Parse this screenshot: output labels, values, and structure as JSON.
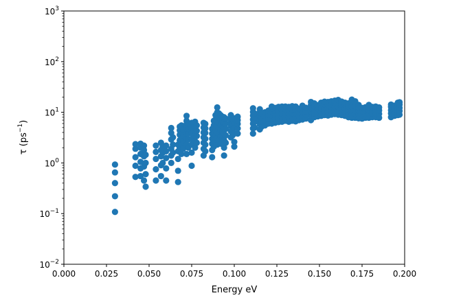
{
  "chart_data": {
    "type": "scatter",
    "title": "",
    "xlabel": "Energy eV",
    "ylabel_main": "τ (ps",
    "ylabel_sup": "−1",
    "ylabel_close": ")",
    "xlim": [
      0.0,
      0.2
    ],
    "ylim": [
      0.01,
      1000
    ],
    "yscale": "log",
    "grid": false,
    "marker_color": "#1f77b4",
    "x_ticks": [
      {
        "value": 0.0,
        "label": "0.000"
      },
      {
        "value": 0.025,
        "label": "0.025"
      },
      {
        "value": 0.05,
        "label": "0.050"
      },
      {
        "value": 0.075,
        "label": "0.075"
      },
      {
        "value": 0.1,
        "label": "0.100"
      },
      {
        "value": 0.125,
        "label": "0.125"
      },
      {
        "value": 0.15,
        "label": "0.150"
      },
      {
        "value": 0.175,
        "label": "0.175"
      },
      {
        "value": 0.2,
        "label": "0.200"
      }
    ],
    "y_ticks": [
      {
        "value": 0.01,
        "base": "10",
        "exp": "−2"
      },
      {
        "value": 0.1,
        "base": "10",
        "exp": "−1"
      },
      {
        "value": 1,
        "base": "10",
        "exp": "0"
      },
      {
        "value": 10,
        "base": "10",
        "exp": "1"
      },
      {
        "value": 100,
        "base": "10",
        "exp": "2"
      },
      {
        "value": 1000,
        "base": "10",
        "exp": "3"
      }
    ],
    "points": [
      [
        0.03,
        0.108
      ],
      [
        0.03,
        0.22
      ],
      [
        0.03,
        0.4
      ],
      [
        0.03,
        0.65
      ],
      [
        0.03,
        0.93
      ],
      [
        0.042,
        0.53
      ],
      [
        0.042,
        0.88
      ],
      [
        0.042,
        1.3
      ],
      [
        0.042,
        1.9
      ],
      [
        0.042,
        2.35
      ],
      [
        0.045,
        0.55
      ],
      [
        0.045,
        0.78
      ],
      [
        0.045,
        1.05
      ],
      [
        0.045,
        1.5
      ],
      [
        0.045,
        2.0
      ],
      [
        0.045,
        2.4
      ],
      [
        0.047,
        0.45
      ],
      [
        0.047,
        0.85
      ],
      [
        0.047,
        1.35
      ],
      [
        0.047,
        1.8
      ],
      [
        0.047,
        2.2
      ],
      [
        0.048,
        0.34
      ],
      [
        0.048,
        0.6
      ],
      [
        0.048,
        1.0
      ],
      [
        0.048,
        1.45
      ],
      [
        0.054,
        0.45
      ],
      [
        0.054,
        0.75
      ],
      [
        0.054,
        1.2
      ],
      [
        0.054,
        1.65
      ],
      [
        0.054,
        2.2
      ],
      [
        0.057,
        0.55
      ],
      [
        0.057,
        0.9
      ],
      [
        0.057,
        1.35
      ],
      [
        0.057,
        1.8
      ],
      [
        0.057,
        2.5
      ],
      [
        0.058,
        1.0
      ],
      [
        0.058,
        1.6
      ],
      [
        0.058,
        2.1
      ],
      [
        0.06,
        0.45
      ],
      [
        0.06,
        0.78
      ],
      [
        0.06,
        1.25
      ],
      [
        0.06,
        1.7
      ],
      [
        0.06,
        2.2
      ],
      [
        0.063,
        1.0
      ],
      [
        0.063,
        1.4
      ],
      [
        0.063,
        1.9
      ],
      [
        0.063,
        2.9
      ],
      [
        0.063,
        3.9
      ],
      [
        0.063,
        4.9
      ],
      [
        0.064,
        1.6
      ],
      [
        0.064,
        2.3
      ],
      [
        0.064,
        3.2
      ],
      [
        0.067,
        0.42
      ],
      [
        0.067,
        0.7
      ],
      [
        0.067,
        1.2
      ],
      [
        0.067,
        1.7
      ],
      [
        0.067,
        2.3
      ],
      [
        0.068,
        2.0
      ],
      [
        0.068,
        2.8
      ],
      [
        0.068,
        3.6
      ],
      [
        0.068,
        4.4
      ],
      [
        0.068,
        5.2
      ],
      [
        0.069,
        1.5
      ],
      [
        0.069,
        2.4
      ],
      [
        0.069,
        3.3
      ],
      [
        0.069,
        4.2
      ],
      [
        0.069,
        5.5
      ],
      [
        0.07,
        1.9
      ],
      [
        0.07,
        2.6
      ],
      [
        0.07,
        3.5
      ],
      [
        0.07,
        4.5
      ],
      [
        0.072,
        1.5
      ],
      [
        0.072,
        2.3
      ],
      [
        0.072,
        3.0
      ],
      [
        0.072,
        3.8
      ],
      [
        0.072,
        4.8
      ],
      [
        0.072,
        5.8
      ],
      [
        0.072,
        6.8
      ],
      [
        0.072,
        8.5
      ],
      [
        0.073,
        2.0
      ],
      [
        0.073,
        2.9
      ],
      [
        0.073,
        3.8
      ],
      [
        0.073,
        4.8
      ],
      [
        0.073,
        6.0
      ],
      [
        0.075,
        0.88
      ],
      [
        0.075,
        1.6
      ],
      [
        0.075,
        2.3
      ],
      [
        0.075,
        3.0
      ],
      [
        0.075,
        3.9
      ],
      [
        0.075,
        4.9
      ],
      [
        0.075,
        6.2
      ],
      [
        0.077,
        2.0
      ],
      [
        0.077,
        2.7
      ],
      [
        0.077,
        3.5
      ],
      [
        0.077,
        4.4
      ],
      [
        0.077,
        5.4
      ],
      [
        0.077,
        6.5
      ],
      [
        0.078,
        2.5
      ],
      [
        0.078,
        3.4
      ],
      [
        0.078,
        4.3
      ],
      [
        0.078,
        5.5
      ],
      [
        0.082,
        1.4
      ],
      [
        0.082,
        1.9
      ],
      [
        0.082,
        2.5
      ],
      [
        0.082,
        3.2
      ],
      [
        0.082,
        4.0
      ],
      [
        0.082,
        5.0
      ],
      [
        0.082,
        6.2
      ],
      [
        0.083,
        1.7
      ],
      [
        0.083,
        2.3
      ],
      [
        0.083,
        3.0
      ],
      [
        0.083,
        3.9
      ],
      [
        0.083,
        4.8
      ],
      [
        0.083,
        5.9
      ],
      [
        0.087,
        1.3
      ],
      [
        0.087,
        1.8
      ],
      [
        0.087,
        2.4
      ],
      [
        0.087,
        3.0
      ],
      [
        0.087,
        3.8
      ],
      [
        0.087,
        4.7
      ],
      [
        0.088,
        2.1
      ],
      [
        0.088,
        2.8
      ],
      [
        0.088,
        3.6
      ],
      [
        0.088,
        4.5
      ],
      [
        0.088,
        5.5
      ],
      [
        0.088,
        6.8
      ],
      [
        0.089,
        2.7
      ],
      [
        0.089,
        3.5
      ],
      [
        0.089,
        4.5
      ],
      [
        0.089,
        5.8
      ],
      [
        0.089,
        7.2
      ],
      [
        0.089,
        8.8
      ],
      [
        0.09,
        2.3
      ],
      [
        0.09,
        3.1
      ],
      [
        0.09,
        4.1
      ],
      [
        0.09,
        5.3
      ],
      [
        0.09,
        6.5
      ],
      [
        0.09,
        8.0
      ],
      [
        0.09,
        10.0
      ],
      [
        0.09,
        12.5
      ],
      [
        0.091,
        2.8
      ],
      [
        0.091,
        3.8
      ],
      [
        0.091,
        5.0
      ],
      [
        0.091,
        6.3
      ],
      [
        0.091,
        7.8
      ],
      [
        0.091,
        9.5
      ],
      [
        0.092,
        2.4
      ],
      [
        0.092,
        3.3
      ],
      [
        0.092,
        4.4
      ],
      [
        0.092,
        5.7
      ],
      [
        0.092,
        7.2
      ],
      [
        0.092,
        8.8
      ],
      [
        0.093,
        3.0
      ],
      [
        0.093,
        4.0
      ],
      [
        0.093,
        5.2
      ],
      [
        0.093,
        6.6
      ],
      [
        0.093,
        8.2
      ],
      [
        0.094,
        1.4
      ],
      [
        0.094,
        2.0
      ],
      [
        0.094,
        2.8
      ],
      [
        0.094,
        3.8
      ],
      [
        0.094,
        5.0
      ],
      [
        0.094,
        6.4
      ],
      [
        0.094,
        8.0
      ],
      [
        0.095,
        2.5
      ],
      [
        0.095,
        3.5
      ],
      [
        0.095,
        4.7
      ],
      [
        0.095,
        6.0
      ],
      [
        0.095,
        7.5
      ],
      [
        0.098,
        3.2
      ],
      [
        0.098,
        4.2
      ],
      [
        0.098,
        5.3
      ],
      [
        0.098,
        6.5
      ],
      [
        0.098,
        7.8
      ],
      [
        0.098,
        8.8
      ],
      [
        0.099,
        3.5
      ],
      [
        0.099,
        4.6
      ],
      [
        0.099,
        5.9
      ],
      [
        0.099,
        7.2
      ],
      [
        0.1,
        2.1
      ],
      [
        0.1,
        2.6
      ],
      [
        0.1,
        3.8
      ],
      [
        0.1,
        5.0
      ],
      [
        0.1,
        6.3
      ],
      [
        0.1,
        7.6
      ],
      [
        0.102,
        3.8
      ],
      [
        0.102,
        4.8
      ],
      [
        0.102,
        5.9
      ],
      [
        0.102,
        7.0
      ],
      [
        0.102,
        8.2
      ],
      [
        0.111,
        3.8
      ],
      [
        0.111,
        4.8
      ],
      [
        0.111,
        6.0
      ],
      [
        0.111,
        7.2
      ],
      [
        0.111,
        8.6
      ],
      [
        0.111,
        10.2
      ],
      [
        0.111,
        12.0
      ],
      [
        0.112,
        5.0
      ],
      [
        0.112,
        6.5
      ],
      [
        0.112,
        8.0
      ],
      [
        0.112,
        9.5
      ],
      [
        0.115,
        4.6
      ],
      [
        0.115,
        5.8
      ],
      [
        0.115,
        7.0
      ],
      [
        0.115,
        8.4
      ],
      [
        0.115,
        10.0
      ],
      [
        0.115,
        11.5
      ],
      [
        0.116,
        5.2
      ],
      [
        0.116,
        6.6
      ],
      [
        0.116,
        8.0
      ],
      [
        0.116,
        9.6
      ],
      [
        0.118,
        5.5
      ],
      [
        0.118,
        7.0
      ],
      [
        0.118,
        8.5
      ],
      [
        0.118,
        10.0
      ],
      [
        0.12,
        6.0
      ],
      [
        0.12,
        7.5
      ],
      [
        0.12,
        9.0
      ],
      [
        0.12,
        10.8
      ],
      [
        0.122,
        6.0
      ],
      [
        0.122,
        7.3
      ],
      [
        0.122,
        8.7
      ],
      [
        0.122,
        10.3
      ],
      [
        0.122,
        12.0
      ],
      [
        0.122,
        13.0
      ],
      [
        0.124,
        6.2
      ],
      [
        0.124,
        7.6
      ],
      [
        0.124,
        9.1
      ],
      [
        0.124,
        10.8
      ],
      [
        0.124,
        12.2
      ],
      [
        0.126,
        6.4
      ],
      [
        0.126,
        7.8
      ],
      [
        0.126,
        9.3
      ],
      [
        0.126,
        11.0
      ],
      [
        0.126,
        12.8
      ],
      [
        0.128,
        6.5
      ],
      [
        0.128,
        8.0
      ],
      [
        0.128,
        9.5
      ],
      [
        0.128,
        11.2
      ],
      [
        0.128,
        13.0
      ],
      [
        0.13,
        6.8
      ],
      [
        0.13,
        8.2
      ],
      [
        0.13,
        9.8
      ],
      [
        0.13,
        11.5
      ],
      [
        0.13,
        13.0
      ],
      [
        0.132,
        6.5
      ],
      [
        0.132,
        7.9
      ],
      [
        0.132,
        9.4
      ],
      [
        0.132,
        11.0
      ],
      [
        0.132,
        12.8
      ],
      [
        0.134,
        6.8
      ],
      [
        0.134,
        8.2
      ],
      [
        0.134,
        9.7
      ],
      [
        0.134,
        11.4
      ],
      [
        0.134,
        13.2
      ],
      [
        0.136,
        6.6
      ],
      [
        0.136,
        8.0
      ],
      [
        0.136,
        9.6
      ],
      [
        0.136,
        11.3
      ],
      [
        0.136,
        13.0
      ],
      [
        0.138,
        7.0
      ],
      [
        0.138,
        8.4
      ],
      [
        0.138,
        10.0
      ],
      [
        0.138,
        11.8
      ],
      [
        0.14,
        7.2
      ],
      [
        0.14,
        8.6
      ],
      [
        0.14,
        10.2
      ],
      [
        0.14,
        12.0
      ],
      [
        0.14,
        13.5
      ],
      [
        0.142,
        7.5
      ],
      [
        0.142,
        9.0
      ],
      [
        0.142,
        10.6
      ],
      [
        0.142,
        12.3
      ],
      [
        0.145,
        7.0
      ],
      [
        0.145,
        8.6
      ],
      [
        0.145,
        10.3
      ],
      [
        0.145,
        12.0
      ],
      [
        0.145,
        14.0
      ],
      [
        0.145,
        16.0
      ],
      [
        0.147,
        8.0
      ],
      [
        0.147,
        9.6
      ],
      [
        0.147,
        11.3
      ],
      [
        0.147,
        13.2
      ],
      [
        0.147,
        15.0
      ],
      [
        0.149,
        8.3
      ],
      [
        0.149,
        10.0
      ],
      [
        0.149,
        11.8
      ],
      [
        0.149,
        13.8
      ],
      [
        0.151,
        8.5
      ],
      [
        0.151,
        10.2
      ],
      [
        0.151,
        12.0
      ],
      [
        0.151,
        14.0
      ],
      [
        0.151,
        15.5
      ],
      [
        0.153,
        8.8
      ],
      [
        0.153,
        10.5
      ],
      [
        0.153,
        12.3
      ],
      [
        0.153,
        14.3
      ],
      [
        0.153,
        16.2
      ],
      [
        0.155,
        8.6
      ],
      [
        0.155,
        10.3
      ],
      [
        0.155,
        12.1
      ],
      [
        0.155,
        14.1
      ],
      [
        0.155,
        16.0
      ],
      [
        0.157,
        9.0
      ],
      [
        0.157,
        10.8
      ],
      [
        0.157,
        12.6
      ],
      [
        0.157,
        14.6
      ],
      [
        0.157,
        16.5
      ],
      [
        0.159,
        9.2
      ],
      [
        0.159,
        11.0
      ],
      [
        0.159,
        12.9
      ],
      [
        0.159,
        15.0
      ],
      [
        0.159,
        17.0
      ],
      [
        0.161,
        9.0
      ],
      [
        0.161,
        10.8
      ],
      [
        0.161,
        12.7
      ],
      [
        0.161,
        14.8
      ],
      [
        0.161,
        17.5
      ],
      [
        0.163,
        8.8
      ],
      [
        0.163,
        10.6
      ],
      [
        0.163,
        12.4
      ],
      [
        0.163,
        14.4
      ],
      [
        0.163,
        16.3
      ],
      [
        0.165,
        8.5
      ],
      [
        0.165,
        10.2
      ],
      [
        0.165,
        12.0
      ],
      [
        0.165,
        14.0
      ],
      [
        0.165,
        15.5
      ],
      [
        0.167,
        8.0
      ],
      [
        0.167,
        9.6
      ],
      [
        0.167,
        11.3
      ],
      [
        0.167,
        13.2
      ],
      [
        0.167,
        15.0
      ],
      [
        0.169,
        7.8
      ],
      [
        0.169,
        9.4
      ],
      [
        0.169,
        11.0
      ],
      [
        0.169,
        13.0
      ],
      [
        0.169,
        15.5
      ],
      [
        0.169,
        17.8
      ],
      [
        0.171,
        7.8
      ],
      [
        0.171,
        9.3
      ],
      [
        0.171,
        11.0
      ],
      [
        0.171,
        13.0
      ],
      [
        0.171,
        16.5
      ],
      [
        0.173,
        7.6
      ],
      [
        0.173,
        9.1
      ],
      [
        0.173,
        10.7
      ],
      [
        0.173,
        12.5
      ],
      [
        0.173,
        14.0
      ],
      [
        0.175,
        7.5
      ],
      [
        0.175,
        9.0
      ],
      [
        0.175,
        10.5
      ],
      [
        0.175,
        12.2
      ],
      [
        0.177,
        7.8
      ],
      [
        0.177,
        9.3
      ],
      [
        0.177,
        10.9
      ],
      [
        0.177,
        12.6
      ],
      [
        0.179,
        7.8
      ],
      [
        0.179,
        9.3
      ],
      [
        0.179,
        10.9
      ],
      [
        0.179,
        12.6
      ],
      [
        0.179,
        14.0
      ],
      [
        0.181,
        8.0
      ],
      [
        0.181,
        9.5
      ],
      [
        0.181,
        11.0
      ],
      [
        0.181,
        12.8
      ],
      [
        0.183,
        8.0
      ],
      [
        0.183,
        9.6
      ],
      [
        0.183,
        11.2
      ],
      [
        0.183,
        13.0
      ],
      [
        0.185,
        7.8
      ],
      [
        0.185,
        9.3
      ],
      [
        0.185,
        10.9
      ],
      [
        0.185,
        12.5
      ],
      [
        0.192,
        8.0
      ],
      [
        0.192,
        9.5
      ],
      [
        0.192,
        11.0
      ],
      [
        0.192,
        12.8
      ],
      [
        0.192,
        14.2
      ],
      [
        0.194,
        8.5
      ],
      [
        0.194,
        10.0
      ],
      [
        0.194,
        11.7
      ],
      [
        0.194,
        13.5
      ],
      [
        0.196,
        8.8
      ],
      [
        0.196,
        10.4
      ],
      [
        0.196,
        12.0
      ],
      [
        0.196,
        13.8
      ],
      [
        0.196,
        15.5
      ],
      [
        0.197,
        9.0
      ],
      [
        0.197,
        10.6
      ],
      [
        0.197,
        12.3
      ],
      [
        0.197,
        14.2
      ],
      [
        0.197,
        15.8
      ]
    ]
  }
}
